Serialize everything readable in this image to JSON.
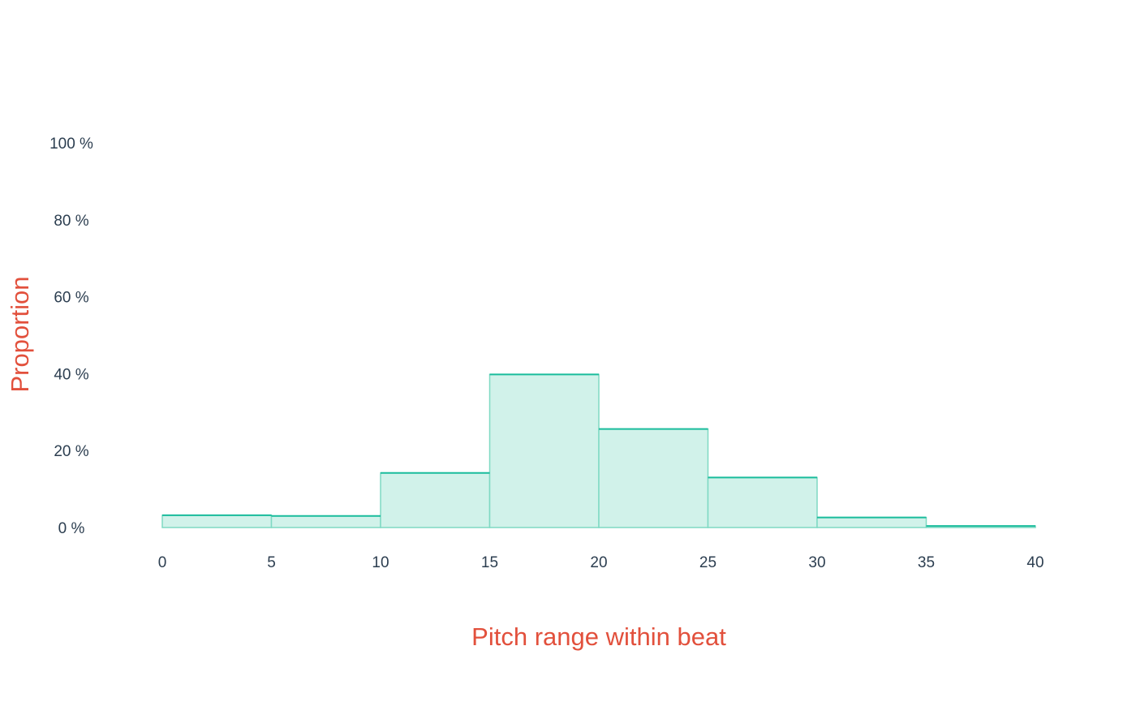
{
  "chart_data": {
    "type": "bar",
    "bin_edges": [
      0,
      5,
      10,
      15,
      20,
      25,
      30,
      35,
      40
    ],
    "values": [
      3.2,
      3.0,
      14.2,
      39.8,
      25.6,
      13.0,
      2.6,
      0.4
    ],
    "value_unit": "%",
    "title": "",
    "xlabel": "Pitch range within beat",
    "ylabel": "Proportion",
    "xlim": [
      0,
      40
    ],
    "ylim": [
      0,
      100
    ],
    "x_ticks": [
      "0",
      "5",
      "10",
      "15",
      "20",
      "25",
      "30",
      "35",
      "40"
    ],
    "y_ticks": [
      "0 %",
      "20 %",
      "40 %",
      "60 %",
      "80 %",
      "100 %"
    ],
    "y_tick_values": [
      0,
      20,
      40,
      60,
      80,
      100
    ],
    "grid": false,
    "legend": "none",
    "colors": {
      "fill": "#d1f2ea",
      "edge": "#7fd9c3",
      "top_line": "#1abc9c",
      "axis_title": "#e2503c",
      "tick_text": "#2c3e50"
    }
  }
}
